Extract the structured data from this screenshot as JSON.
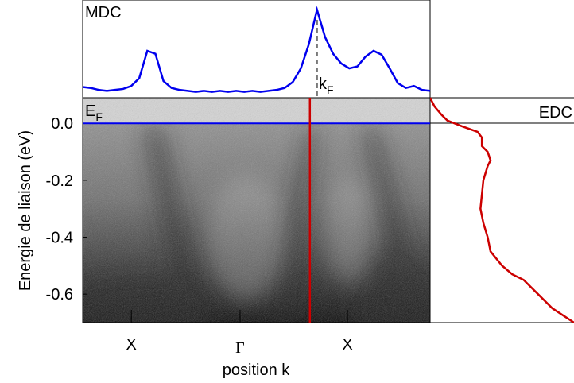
{
  "chart_data": {
    "type": "arpes",
    "ylabel": "Energie de liaison (eV)",
    "xlabel": "position k",
    "ylim": [
      -0.7,
      0.09
    ],
    "yticks": [
      {
        "value": 0,
        "label": "0.0"
      },
      -0.2,
      -0.4,
      -0.6
    ],
    "xlim": [
      0,
      1
    ],
    "xticks": [
      {
        "value": 0.14,
        "label": "X"
      },
      {
        "value": 0.453,
        "label": "Γ"
      },
      {
        "value": 0.762,
        "label": "X"
      }
    ],
    "fermi_level": 0,
    "fermi_label": {
      "main": "E",
      "sub": "F"
    },
    "fermi_color": "#0000ee",
    "k_cut": 0.654,
    "cut_color": "#cc0000",
    "k_F": 0.675,
    "kf_label": {
      "main": "k",
      "sub": "F"
    },
    "mdc": {
      "title": "MDC",
      "color": "#0000ee",
      "ylim": [
        0,
        1
      ],
      "values": [
        0.11,
        0.1,
        0.08,
        0.07,
        0.08,
        0.09,
        0.12,
        0.2,
        0.48,
        0.45,
        0.17,
        0.1,
        0.08,
        0.07,
        0.06,
        0.07,
        0.06,
        0.07,
        0.06,
        0.07,
        0.06,
        0.07,
        0.06,
        0.07,
        0.08,
        0.1,
        0.16,
        0.3,
        0.55,
        0.9,
        0.62,
        0.45,
        0.35,
        0.3,
        0.32,
        0.42,
        0.48,
        0.44,
        0.3,
        0.15,
        0.1,
        0.12,
        0.08,
        0.07
      ]
    },
    "edc": {
      "title": "EDC",
      "color": "#cc0000",
      "xlim": [
        0,
        1
      ],
      "energy": [
        0.09,
        0.06,
        0.03,
        0.01,
        -0.01,
        -0.03,
        -0.05,
        -0.08,
        -0.1,
        -0.13,
        -0.15,
        -0.2,
        -0.25,
        -0.3,
        -0.35,
        -0.4,
        -0.45,
        -0.5,
        -0.53,
        -0.55,
        -0.6,
        -0.65,
        -0.7
      ],
      "values": [
        0,
        0.03,
        0.08,
        0.12,
        0.22,
        0.33,
        0.36,
        0.36,
        0.4,
        0.42,
        0.4,
        0.37,
        0.36,
        0.35,
        0.37,
        0.4,
        0.42,
        0.5,
        0.57,
        0.65,
        0.75,
        0.85,
        1.0
      ]
    }
  }
}
